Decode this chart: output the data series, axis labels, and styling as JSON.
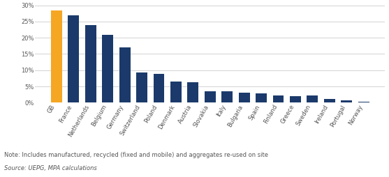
{
  "categories": [
    "GB",
    "France",
    "Netherlands",
    "Belgium",
    "Germany",
    "Switzerland",
    "Poland",
    "Denmark",
    "Austria",
    "Slovakia",
    "Italy",
    "Bulgaria",
    "Spain",
    "Finland",
    "Greece",
    "Sweden",
    "Ireland",
    "Portugal",
    "Norway"
  ],
  "values": [
    28.5,
    27.0,
    24.0,
    21.0,
    17.0,
    9.2,
    8.8,
    6.5,
    6.4,
    3.5,
    3.5,
    3.0,
    2.8,
    2.2,
    2.1,
    2.2,
    1.1,
    0.7,
    0.3
  ],
  "bar_colors": [
    "#F5A623",
    "#1B3A6B",
    "#1B3A6B",
    "#1B3A6B",
    "#1B3A6B",
    "#1B3A6B",
    "#1B3A6B",
    "#1B3A6B",
    "#1B3A6B",
    "#1B3A6B",
    "#1B3A6B",
    "#1B3A6B",
    "#1B3A6B",
    "#1B3A6B",
    "#1B3A6B",
    "#1B3A6B",
    "#1B3A6B",
    "#1B3A6B",
    "#1B3A6B"
  ],
  "ylim": [
    0,
    30
  ],
  "yticks": [
    0,
    5,
    10,
    15,
    20,
    25,
    30
  ],
  "ytick_labels": [
    "0%",
    "5%",
    "10%",
    "15%",
    "20%",
    "25%",
    "30%"
  ],
  "note": "Note: Includes manufactured, recycled (fixed and mobile) and aggregates re-used on site",
  "source": "Source: UEPG, MPA calculations",
  "background_color": "#ffffff",
  "grid_color": "#cccccc",
  "bar_edge_color": "none",
  "tick_label_fontsize": 6.0,
  "note_fontsize": 6.0,
  "axis_label_color": "#555555",
  "bar_width": 0.65
}
